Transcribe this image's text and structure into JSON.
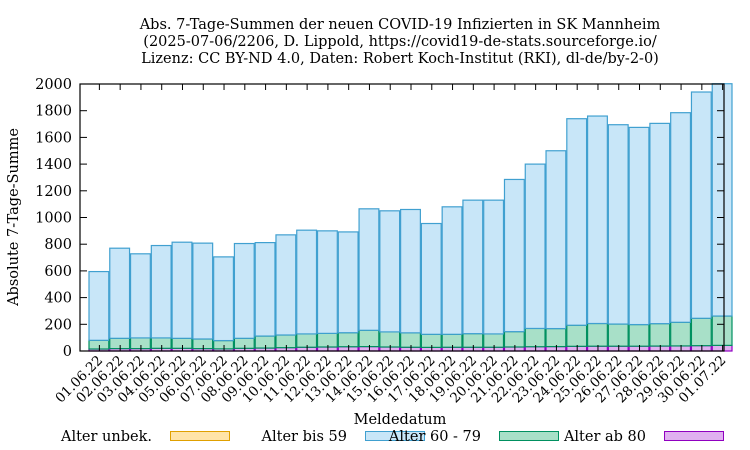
{
  "chart_data": {
    "type": "bar",
    "stacked": true,
    "title_lines": [
      "Abs. 7-Tage-Summen der neuen COVID-19 Infizierten in SK Mannheim",
      "(2025-07-06/2206, D. Lippold, https://covid19-de-stats.sourceforge.io/",
      "Lizenz: CC BY-ND 4.0, Daten: Robert Koch-Institut (RKI), dl-de/by-2-0)"
    ],
    "xlabel": "Meldedatum",
    "ylabel": "Absolute 7-Tage-Summe",
    "ylim": [
      0,
      2000
    ],
    "yticks": [
      0,
      200,
      400,
      600,
      800,
      1000,
      1200,
      1400,
      1600,
      1800,
      2000
    ],
    "grid": false,
    "legend_position": "bottom",
    "categories": [
      "01.06.22",
      "02.06.22",
      "03.06.22",
      "04.06.22",
      "05.06.22",
      "06.06.22",
      "07.06.22",
      "08.06.22",
      "09.06.22",
      "10.06.22",
      "11.06.22",
      "12.06.22",
      "13.06.22",
      "14.06.22",
      "15.06.22",
      "16.06.22",
      "17.06.22",
      "18.06.22",
      "19.06.22",
      "20.06.22",
      "21.06.22",
      "22.06.22",
      "23.06.22",
      "24.06.22",
      "25.06.22",
      "26.06.22",
      "27.06.22",
      "28.06.22",
      "29.06.22",
      "30.06.22",
      "01.07.22"
    ],
    "series": [
      {
        "name": "Alter unbek.",
        "fill": "#ffe4a8",
        "stroke": "#e0a000",
        "values": [
          0,
          0,
          0,
          0,
          0,
          0,
          0,
          0,
          0,
          0,
          0,
          0,
          0,
          0,
          0,
          0,
          0,
          0,
          0,
          0,
          0,
          0,
          0,
          0,
          0,
          0,
          0,
          0,
          0,
          0,
          0
        ]
      },
      {
        "name": "Alter ab 80",
        "fill": "#e0b0f0",
        "stroke": "#9000c0",
        "values": [
          15,
          18,
          18,
          20,
          20,
          18,
          16,
          20,
          22,
          25,
          28,
          30,
          32,
          33,
          30,
          28,
          27,
          28,
          28,
          28,
          30,
          32,
          33,
          35,
          36,
          36,
          36,
          37,
          38,
          40,
          42
        ]
      },
      {
        "name": "Alter 60 - 79",
        "fill": "#a8e0c8",
        "stroke": "#009060",
        "values": [
          65,
          77,
          80,
          78,
          75,
          72,
          62,
          75,
          90,
          95,
          100,
          102,
          105,
          122,
          113,
          108,
          98,
          97,
          102,
          100,
          115,
          137,
          135,
          158,
          170,
          166,
          162,
          168,
          177,
          205,
          220
        ]
      },
      {
        "name": "Alter bis 59",
        "fill": "#c8e6f8",
        "stroke": "#40a0d0",
        "values": [
          515,
          675,
          630,
          692,
          720,
          718,
          627,
          710,
          700,
          750,
          777,
          768,
          755,
          910,
          907,
          924,
          830,
          955,
          1000,
          1002,
          1140,
          1231,
          1332,
          1547,
          1554,
          1493,
          1477,
          1500,
          1570,
          1695,
          1740
        ]
      }
    ],
    "legend": [
      "Alter unbek.",
      "Alter bis 59",
      "Alter 60 - 79",
      "Alter ab 80"
    ]
  }
}
